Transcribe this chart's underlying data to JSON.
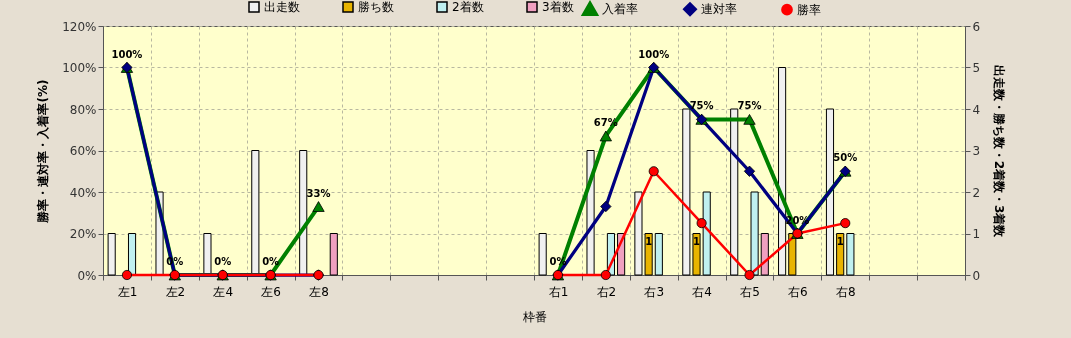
{
  "chart_data": {
    "type": "bar",
    "xlabel": "枠番",
    "ylabel": "勝率・連対率・入着率(%)",
    "y2label": "出走数・勝ち数・2着数・3着数",
    "categories": [
      "左1",
      "左2",
      "左4",
      "左6",
      "左8",
      null,
      null,
      null,
      null,
      "右1",
      "右2",
      "右3",
      "右4",
      "右5",
      "右6",
      "右8",
      null,
      null
    ],
    "series": [
      {
        "name": "出走数",
        "axis": "y2",
        "color": "#f0f0f0",
        "values": [
          1,
          2,
          1,
          3,
          3,
          null,
          null,
          null,
          null,
          1,
          3,
          2,
          4,
          4,
          5,
          4,
          null,
          null
        ]
      },
      {
        "name": "勝ち数",
        "axis": "y2",
        "color": "#e8b400",
        "values": [
          null,
          null,
          null,
          null,
          null,
          null,
          null,
          null,
          null,
          null,
          null,
          1,
          1,
          null,
          1,
          1,
          null,
          null
        ],
        "value_labels": [
          null,
          null,
          null,
          null,
          null,
          null,
          null,
          null,
          null,
          null,
          null,
          "1",
          "1",
          null,
          null,
          "1",
          null,
          null
        ]
      },
      {
        "name": "2着数",
        "axis": "y2",
        "color": "#c0f0f0",
        "values": [
          1,
          null,
          null,
          null,
          null,
          null,
          null,
          null,
          null,
          null,
          1,
          1,
          2,
          2,
          null,
          1,
          null,
          null
        ]
      },
      {
        "name": "3着数",
        "axis": "y2",
        "color": "#f0a0c0",
        "values": [
          null,
          null,
          null,
          null,
          1,
          null,
          null,
          null,
          null,
          null,
          1,
          null,
          null,
          1,
          null,
          null,
          null,
          null
        ]
      },
      {
        "name": "入着率",
        "type": "line",
        "color": "#008000",
        "marker": "triangle",
        "values": [
          100,
          0,
          0,
          0,
          33,
          null,
          null,
          null,
          null,
          0,
          67,
          100,
          75,
          75,
          20,
          50,
          null,
          null
        ],
        "value_labels": [
          "100%",
          "0%",
          "0%",
          "0%",
          "33%",
          null,
          null,
          null,
          null,
          "0%",
          "67%",
          "100%",
          "75%",
          "75%",
          "20%",
          "50%",
          null,
          null
        ]
      },
      {
        "name": "連対率",
        "type": "line",
        "color": "#000080",
        "marker": "diamond",
        "values": [
          100,
          0,
          0,
          0,
          0,
          null,
          null,
          null,
          null,
          0,
          33,
          100,
          75,
          50,
          20,
          50,
          null,
          null
        ]
      },
      {
        "name": "勝率",
        "type": "line",
        "color": "#ff0000",
        "marker": "circle",
        "values": [
          0,
          0,
          0,
          0,
          0,
          null,
          null,
          null,
          null,
          0,
          0,
          50,
          25,
          0,
          20,
          25,
          null,
          null
        ]
      }
    ],
    "ylim": [
      0,
      120
    ],
    "yticks": [
      {
        "value": 0,
        "label": "0%"
      },
      {
        "value": 20,
        "label": "20%"
      },
      {
        "value": 40,
        "label": "40%"
      },
      {
        "value": 60,
        "label": "60%"
      },
      {
        "value": 80,
        "label": "80%"
      },
      {
        "value": 100,
        "label": "100%"
      },
      {
        "value": 120,
        "label": "120%"
      }
    ],
    "y2lim": [
      0,
      6
    ],
    "y2ticks": [
      0,
      1,
      2,
      3,
      4,
      5,
      6
    ],
    "grid": true,
    "legend": "top"
  }
}
